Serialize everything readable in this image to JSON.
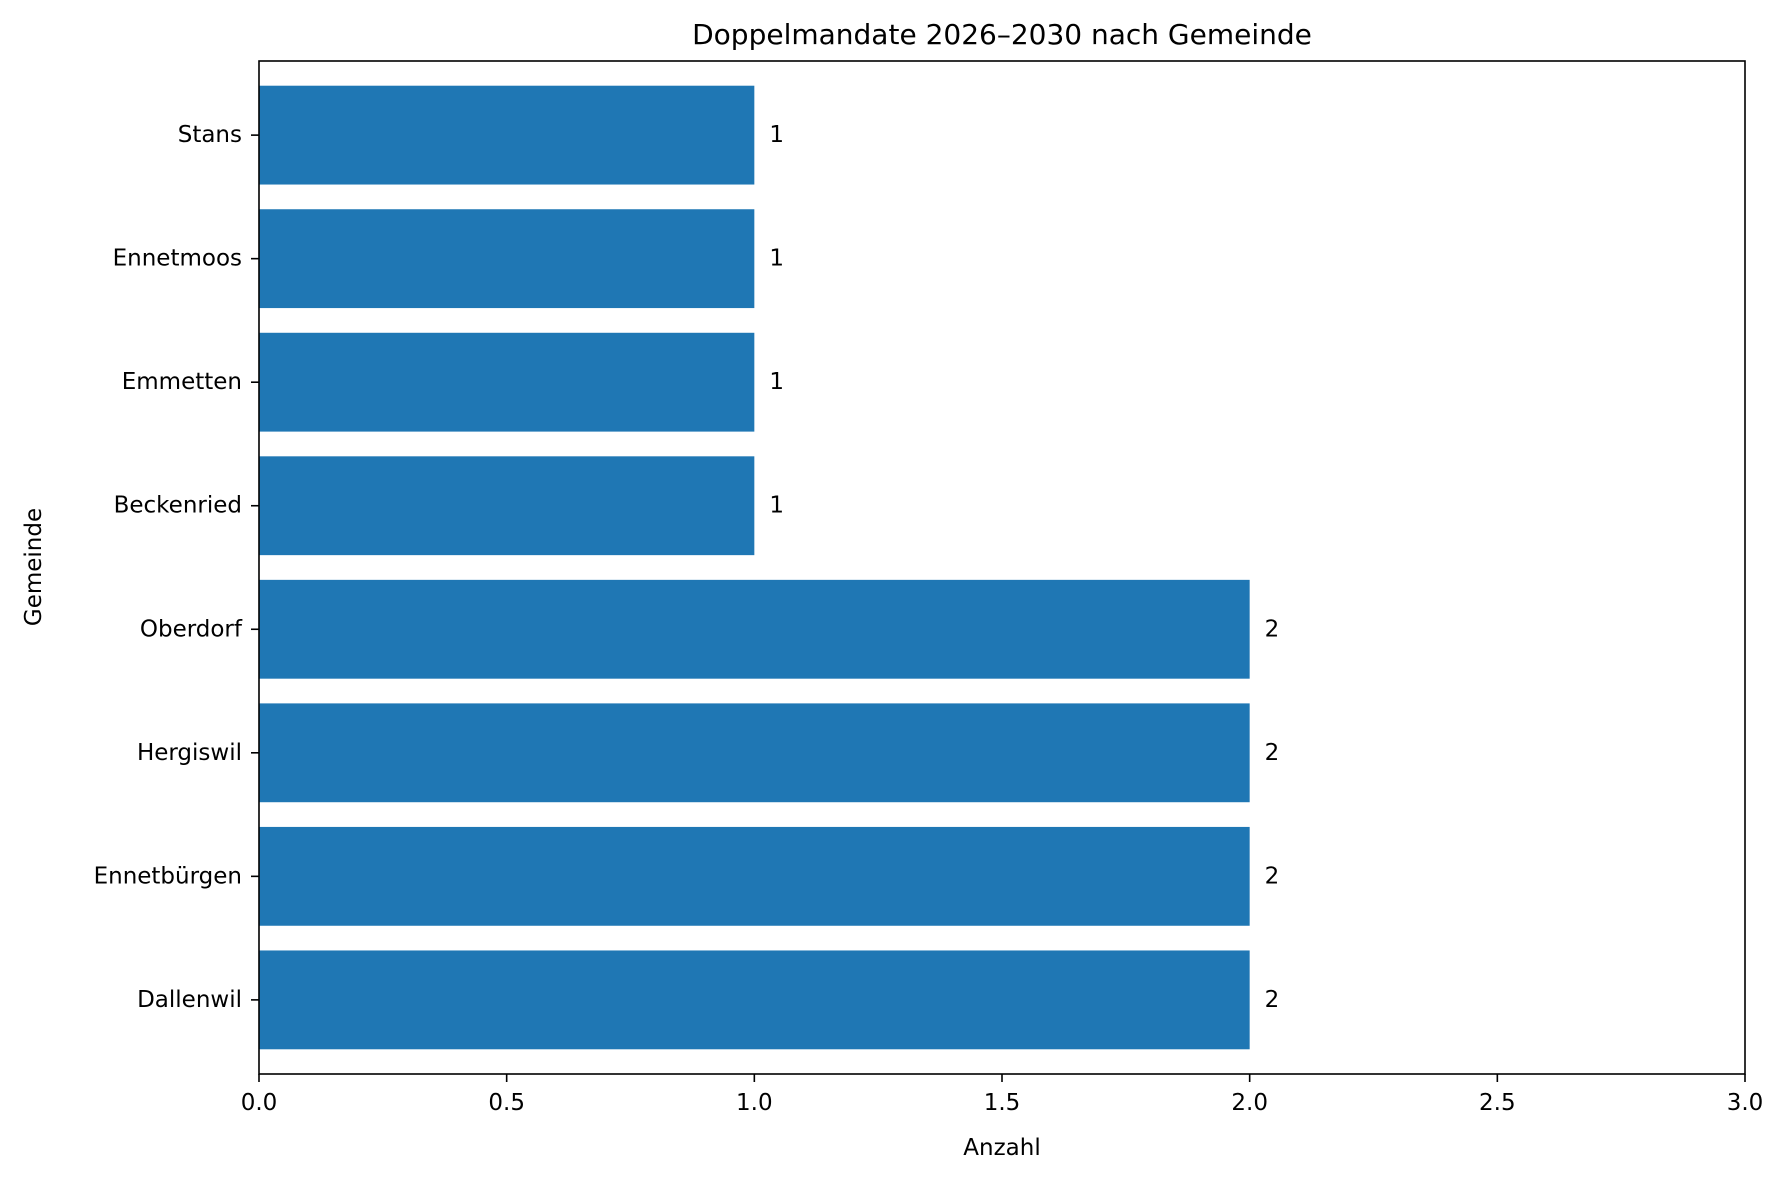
{
  "chart_data": {
    "type": "bar",
    "orientation": "horizontal",
    "title": "Doppelmandate 2026–2030 nach Gemeinde",
    "xlabel": "Anzahl",
    "ylabel": "Gemeinde",
    "categories": [
      "Dallenwil",
      "Ennetbürgen",
      "Hergiswil",
      "Oberdorf",
      "Beckenried",
      "Emmetten",
      "Ennetmoos",
      "Stans"
    ],
    "values": [
      2,
      2,
      2,
      2,
      1,
      1,
      1,
      1
    ],
    "data_labels": [
      "2",
      "2",
      "2",
      "2",
      "1",
      "1",
      "1",
      "1"
    ],
    "xlim": [
      0,
      3
    ],
    "xticks": [
      0,
      0.5,
      1,
      1.5,
      2,
      2.5,
      3
    ],
    "xtick_labels": [
      "0.0",
      "0.5",
      "1.0",
      "1.5",
      "2.0",
      "2.5",
      "3.0"
    ],
    "bar_color": "#1f77b4",
    "grid": false,
    "legend": "none"
  }
}
